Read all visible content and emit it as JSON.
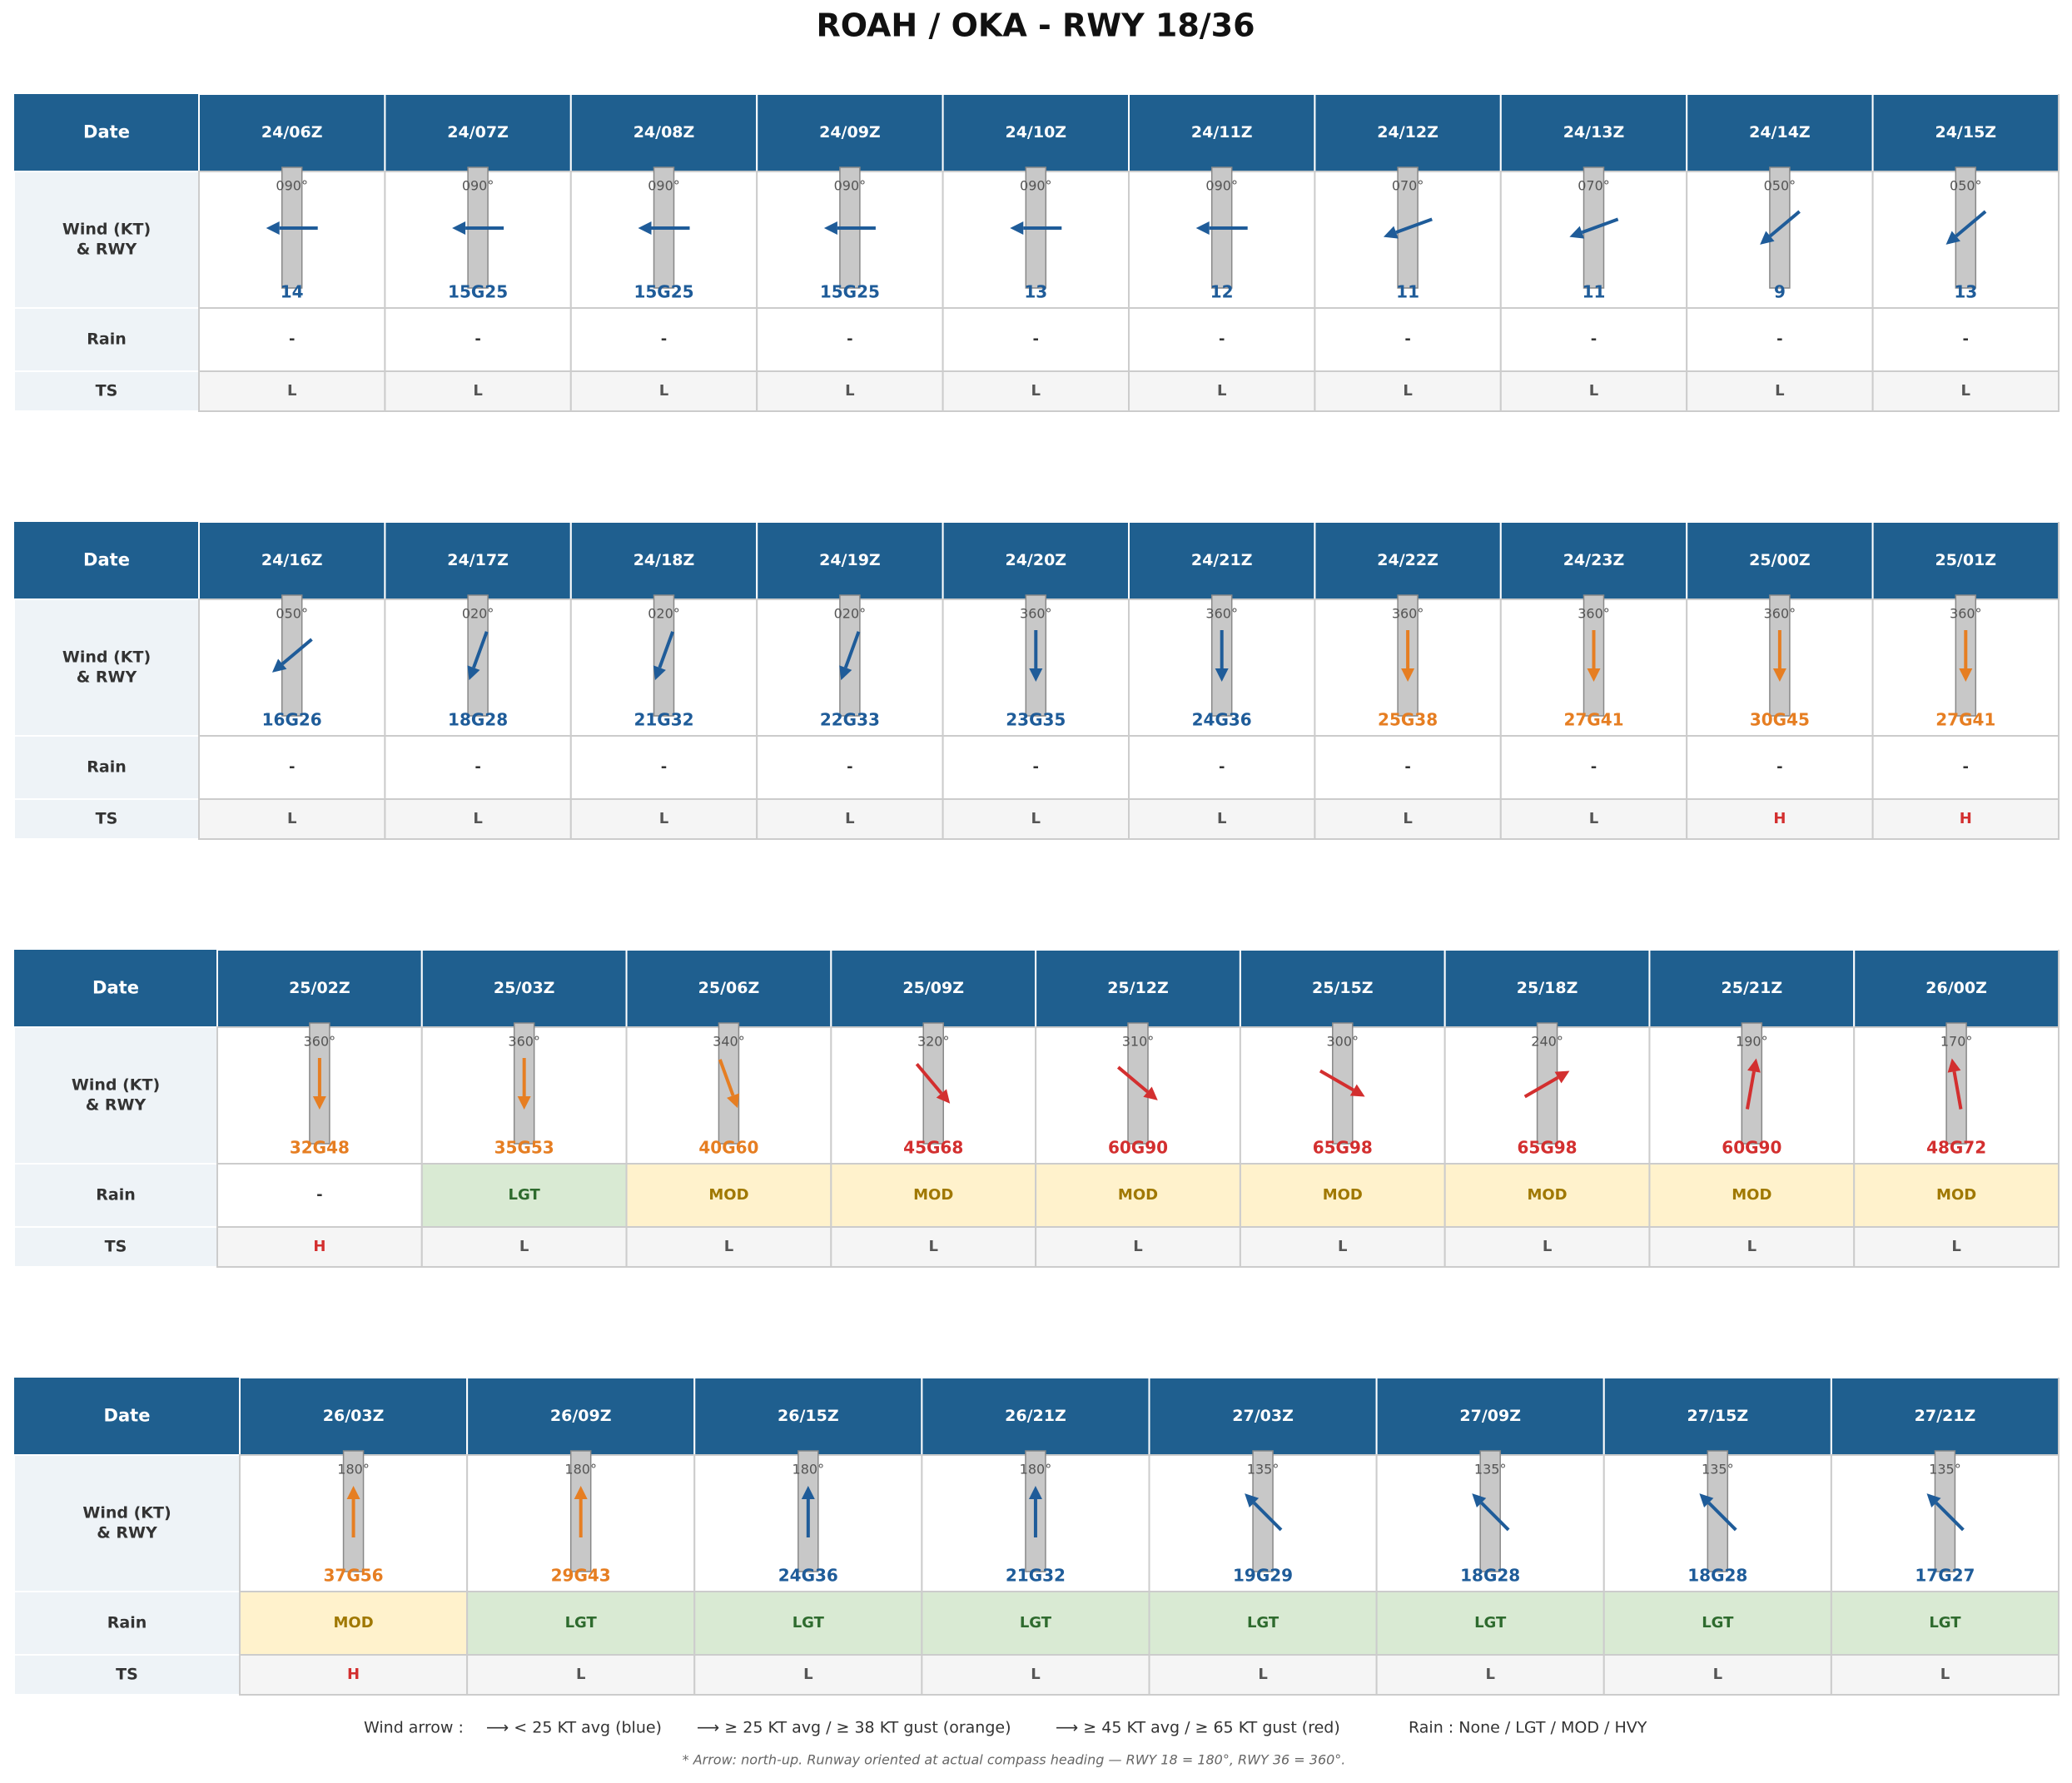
{
  "title": "ROAH / OKA  -  RWY 18/36",
  "row_labels": {
    "date": "Date",
    "wind": [
      "Wind (KT)",
      "& RWY"
    ],
    "rain": "Rain",
    "ts": "TS"
  },
  "rain_palette": [
    {
      "label": "-",
      "bg": "#ffffff",
      "fg": "#333333"
    },
    {
      "label": "LGT",
      "bg": "#d9ead3",
      "fg": "#2e6b2e"
    },
    {
      "label": "MOD",
      "bg": "#fff2cc",
      "fg": "#a07800"
    }
  ],
  "ts_palette": [
    {
      "label": "L",
      "fg": "#555555"
    },
    {
      "label": "H",
      "fg": "#d32f2f"
    }
  ],
  "blocks": [
    {
      "columns": [
        {
          "date": "24/06Z",
          "dir": "090°",
          "wind": "14",
          "color": "#1f5c99",
          "rain": "-",
          "ts": "L"
        },
        {
          "date": "24/07Z",
          "dir": "090°",
          "wind": "15G25",
          "color": "#1f5c99",
          "rain": "-",
          "ts": "L"
        },
        {
          "date": "24/08Z",
          "dir": "090°",
          "wind": "15G25",
          "color": "#1f5c99",
          "rain": "-",
          "ts": "L"
        },
        {
          "date": "24/09Z",
          "dir": "090°",
          "wind": "15G25",
          "color": "#1f5c99",
          "rain": "-",
          "ts": "L"
        },
        {
          "date": "24/10Z",
          "dir": "090°",
          "wind": "13",
          "color": "#1f5c99",
          "rain": "-",
          "ts": "L"
        },
        {
          "date": "24/11Z",
          "dir": "090°",
          "wind": "12",
          "color": "#1f5c99",
          "rain": "-",
          "ts": "L"
        },
        {
          "date": "24/12Z",
          "dir": "070°",
          "wind": "11",
          "color": "#1f5c99",
          "rain": "-",
          "ts": "L"
        },
        {
          "date": "24/13Z",
          "dir": "070°",
          "wind": "11",
          "color": "#1f5c99",
          "rain": "-",
          "ts": "L"
        },
        {
          "date": "24/14Z",
          "dir": "050°",
          "wind": "9",
          "color": "#1f5c99",
          "rain": "-",
          "ts": "L"
        },
        {
          "date": "24/15Z",
          "dir": "050°",
          "wind": "13",
          "color": "#1f5c99",
          "rain": "-",
          "ts": "L"
        }
      ]
    },
    {
      "columns": [
        {
          "date": "24/16Z",
          "dir": "050°",
          "wind": "16G26",
          "color": "#1f5c99",
          "rain": "-",
          "ts": "L"
        },
        {
          "date": "24/17Z",
          "dir": "020°",
          "wind": "18G28",
          "color": "#1f5c99",
          "rain": "-",
          "ts": "L"
        },
        {
          "date": "24/18Z",
          "dir": "020°",
          "wind": "21G32",
          "color": "#1f5c99",
          "rain": "-",
          "ts": "L"
        },
        {
          "date": "24/19Z",
          "dir": "020°",
          "wind": "22G33",
          "color": "#1f5c99",
          "rain": "-",
          "ts": "L"
        },
        {
          "date": "24/20Z",
          "dir": "360°",
          "wind": "23G35",
          "color": "#1f5c99",
          "rain": "-",
          "ts": "L"
        },
        {
          "date": "24/21Z",
          "dir": "360°",
          "wind": "24G36",
          "color": "#1f5c99",
          "rain": "-",
          "ts": "L"
        },
        {
          "date": "24/22Z",
          "dir": "360°",
          "wind": "25G38",
          "color": "#e67e22",
          "rain": "-",
          "ts": "L"
        },
        {
          "date": "24/23Z",
          "dir": "360°",
          "wind": "27G41",
          "color": "#e67e22",
          "rain": "-",
          "ts": "L"
        },
        {
          "date": "25/00Z",
          "dir": "360°",
          "wind": "30G45",
          "color": "#e67e22",
          "rain": "-",
          "ts": "H"
        },
        {
          "date": "25/01Z",
          "dir": "360°",
          "wind": "27G41",
          "color": "#e67e22",
          "rain": "-",
          "ts": "H"
        }
      ]
    },
    {
      "columns": [
        {
          "date": "25/02Z",
          "dir": "360°",
          "wind": "32G48",
          "color": "#e67e22",
          "rain": "-",
          "ts": "H"
        },
        {
          "date": "25/03Z",
          "dir": "360°",
          "wind": "35G53",
          "color": "#e67e22",
          "rain": "LGT",
          "ts": "L"
        },
        {
          "date": "25/06Z",
          "dir": "340°",
          "wind": "40G60",
          "color": "#e67e22",
          "rain": "MOD",
          "ts": "L"
        },
        {
          "date": "25/09Z",
          "dir": "320°",
          "wind": "45G68",
          "color": "#d32f2f",
          "rain": "MOD",
          "ts": "L"
        },
        {
          "date": "25/12Z",
          "dir": "310°",
          "wind": "60G90",
          "color": "#d32f2f",
          "rain": "MOD",
          "ts": "L"
        },
        {
          "date": "25/15Z",
          "dir": "300°",
          "wind": "65G98",
          "color": "#d32f2f",
          "rain": "MOD",
          "ts": "L"
        },
        {
          "date": "25/18Z",
          "dir": "240°",
          "wind": "65G98",
          "color": "#d32f2f",
          "rain": "MOD",
          "ts": "L"
        },
        {
          "date": "25/21Z",
          "dir": "190°",
          "wind": "60G90",
          "color": "#d32f2f",
          "rain": "MOD",
          "ts": "L"
        },
        {
          "date": "26/00Z",
          "dir": "170°",
          "wind": "48G72",
          "color": "#d32f2f",
          "rain": "MOD",
          "ts": "L"
        }
      ]
    },
    {
      "columns": [
        {
          "date": "26/03Z",
          "dir": "180°",
          "wind": "37G56",
          "color": "#e67e22",
          "rain": "MOD",
          "ts": "H"
        },
        {
          "date": "26/09Z",
          "dir": "180°",
          "wind": "29G43",
          "color": "#e67e22",
          "rain": "LGT",
          "ts": "L"
        },
        {
          "date": "26/15Z",
          "dir": "180°",
          "wind": "24G36",
          "color": "#1f5c99",
          "rain": "LGT",
          "ts": "L"
        },
        {
          "date": "26/21Z",
          "dir": "180°",
          "wind": "21G32",
          "color": "#1f5c99",
          "rain": "LGT",
          "ts": "L"
        },
        {
          "date": "27/03Z",
          "dir": "135°",
          "wind": "19G29",
          "color": "#1f5c99",
          "rain": "LGT",
          "ts": "L"
        },
        {
          "date": "27/09Z",
          "dir": "135°",
          "wind": "18G28",
          "color": "#1f5c99",
          "rain": "LGT",
          "ts": "L"
        },
        {
          "date": "27/15Z",
          "dir": "135°",
          "wind": "18G28",
          "color": "#1f5c99",
          "rain": "LGT",
          "ts": "L"
        },
        {
          "date": "27/21Z",
          "dir": "135°",
          "wind": "17G27",
          "color": "#1f5c99",
          "rain": "LGT",
          "ts": "L"
        }
      ]
    }
  ],
  "legend": {
    "wind_title": "Wind arrow :",
    "items": [
      "⟶ < 25 KT avg (blue)",
      "⟶ ≥ 25 KT avg / ≥ 38 KT gust (orange)",
      "⟶ ≥ 45 KT avg / ≥ 65 KT gust (red)"
    ],
    "rain": "Rain :  None / LGT / MOD / HVY"
  },
  "footnote": "* Arrow: north-up. Runway oriented at actual compass heading — RWY 18 = 180°, RWY 36 = 360°."
}
